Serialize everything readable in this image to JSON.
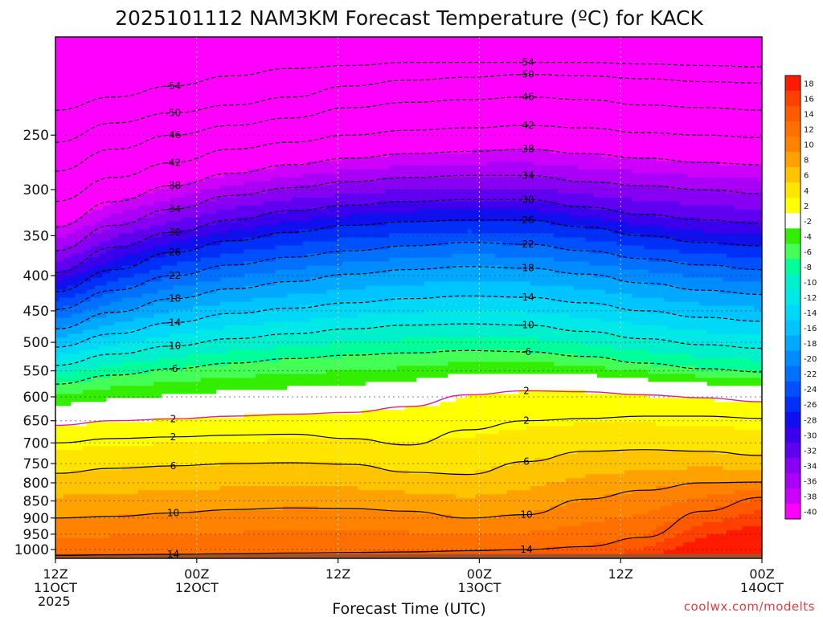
{
  "chart_data": {
    "type": "heatmap",
    "title": "2025101112 NAM3KM Forecast Temperature (ºC) for KACK",
    "xlabel": "Forecast Time (UTC)",
    "ylabel": "",
    "y_scale": "log-pressure",
    "ylim": [
      1030,
      180
    ],
    "y_ticks": [
      250,
      300,
      350,
      400,
      450,
      500,
      550,
      600,
      650,
      700,
      750,
      800,
      850,
      900,
      950,
      1000
    ],
    "x_range_hours": [
      0,
      60
    ],
    "x_ticks": [
      {
        "hour": 0,
        "lines": [
          "12Z",
          "11OCT",
          "2025"
        ]
      },
      {
        "hour": 12,
        "lines": [
          "00Z",
          "12OCT"
        ]
      },
      {
        "hour": 24,
        "lines": [
          "12Z"
        ]
      },
      {
        "hour": 36,
        "lines": [
          "00Z",
          "13OCT"
        ]
      },
      {
        "hour": 48,
        "lines": [
          "12Z"
        ]
      },
      {
        "hour": 60,
        "lines": [
          "00Z",
          "14OCT"
        ]
      }
    ],
    "grid": true,
    "legend": "right colorbar",
    "colorbar_levels": [
      18,
      16,
      14,
      12,
      10,
      8,
      6,
      4,
      2,
      -2,
      -4,
      -6,
      -8,
      -10,
      -12,
      -14,
      -16,
      -18,
      -20,
      -22,
      -24,
      -26,
      -28,
      -30,
      -32,
      -34,
      -36,
      -38,
      -40
    ],
    "colorbar_colors": [
      "#ff1a00",
      "#ff4000",
      "#ff5a00",
      "#ff7000",
      "#ff8200",
      "#ffa200",
      "#ffc400",
      "#ffe600",
      "#ffff00",
      "#ffffff",
      "#33ee00",
      "#44ff55",
      "#00ff99",
      "#00f0cc",
      "#00e8e8",
      "#00d8f8",
      "#00c4ff",
      "#00a8ff",
      "#008cff",
      "#0070ff",
      "#0050ff",
      "#0030f8",
      "#1010ee",
      "#3a00ee",
      "#6000f0",
      "#8800f4",
      "#aa00f8",
      "#cc00fb",
      "#ff00ff"
    ],
    "isotherms": [
      {
        "value": -54,
        "label": "-54",
        "p": [
          230,
          220,
          212,
          205,
          200,
          198,
          196,
          196,
          196,
          196,
          197,
          198,
          199
        ]
      },
      {
        "value": -50,
        "label": "-50",
        "p": [
          256,
          240,
          232,
          226,
          220,
          212,
          208,
          206,
          204,
          205,
          207,
          209,
          210
        ]
      },
      {
        "value": -46,
        "label": "-46",
        "p": [
          282,
          262,
          250,
          242,
          236,
          228,
          224,
          222,
          220,
          222,
          226,
          228,
          230
        ]
      },
      {
        "value": -42,
        "label": "-42",
        "p": [
          312,
          288,
          274,
          262,
          256,
          250,
          246,
          244,
          242,
          244,
          248,
          250,
          252
        ]
      },
      {
        "value": -38,
        "label": "-38",
        "p": [
          340,
          312,
          296,
          284,
          276,
          270,
          266,
          264,
          262,
          266,
          270,
          274,
          276
        ]
      },
      {
        "value": -34,
        "label": "-34",
        "p": [
          368,
          338,
          320,
          306,
          298,
          292,
          288,
          286,
          286,
          292,
          296,
          300,
          304
        ]
      },
      {
        "value": -30,
        "label": "-30",
        "p": [
          396,
          364,
          346,
          332,
          322,
          316,
          312,
          310,
          310,
          318,
          326,
          332,
          336
        ]
      },
      {
        "value": -26,
        "label": "-26",
        "p": [
          422,
          392,
          370,
          356,
          346,
          338,
          334,
          332,
          332,
          340,
          350,
          358,
          362
        ]
      },
      {
        "value": -22,
        "label": "-22",
        "p": [
          448,
          420,
          400,
          386,
          376,
          368,
          362,
          358,
          360,
          368,
          378,
          386,
          392
        ]
      },
      {
        "value": -18,
        "label": "-18",
        "p": [
          478,
          452,
          432,
          418,
          408,
          398,
          392,
          388,
          390,
          398,
          410,
          420,
          426
        ]
      },
      {
        "value": -14,
        "label": "-14",
        "p": [
          508,
          486,
          468,
          454,
          446,
          438,
          432,
          428,
          430,
          438,
          450,
          460,
          466
        ]
      },
      {
        "value": -10,
        "label": "-10",
        "p": [
          540,
          520,
          506,
          494,
          486,
          478,
          472,
          470,
          472,
          482,
          494,
          504,
          510
        ]
      },
      {
        "value": -6,
        "label": "-6",
        "p": [
          575,
          558,
          546,
          536,
          528,
          522,
          518,
          514,
          516,
          524,
          536,
          546,
          552
        ]
      },
      {
        "value": 2,
        "label": "2",
        "p": [
          660,
          650,
          646,
          640,
          636,
          632,
          620,
          596,
          588,
          590,
          596,
          602,
          610
        ]
      },
      {
        "value": 2,
        "label": "2",
        "p": [
          700,
          690,
          686,
          682,
          680,
          690,
          705,
          670,
          650,
          645,
          640,
          640,
          645
        ]
      },
      {
        "value": 6,
        "label": "6",
        "p": [
          775,
          762,
          756,
          750,
          748,
          752,
          772,
          778,
          745,
          720,
          716,
          720,
          730
        ]
      },
      {
        "value": 10,
        "label": "10",
        "p": [
          900,
          895,
          885,
          875,
          870,
          872,
          880,
          900,
          890,
          845,
          820,
          800,
          798
        ]
      },
      {
        "value": 14,
        "label": "14",
        "p": [
          1020,
          1018,
          1016,
          1014,
          1012,
          1010,
          1008,
          1004,
          1000,
          990,
          960,
          880,
          840
        ]
      }
    ]
  },
  "credit": "coolwx.com/modelts"
}
